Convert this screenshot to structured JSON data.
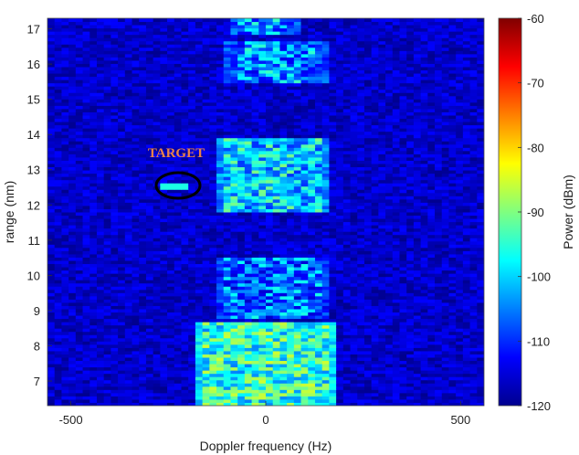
{
  "chart_data": {
    "type": "heatmap",
    "title": "",
    "xlabel": "Doppler frequency (Hz)",
    "ylabel": "range (nm)",
    "xlim": [
      -560,
      560
    ],
    "ylim": [
      6.3,
      17.3
    ],
    "x_ticks": [
      -500,
      0,
      500
    ],
    "y_ticks": [
      7,
      8,
      9,
      10,
      11,
      12,
      13,
      14,
      15,
      16,
      17
    ],
    "colorbar": {
      "label": "Power (dBm)",
      "range": [
        -120,
        -60
      ],
      "ticks": [
        -60,
        -70,
        -80,
        -90,
        -100,
        -110,
        -120
      ],
      "colormap": "jet"
    },
    "clutter_regions": [
      {
        "range": [
          16.8,
          17.3
        ],
        "doppler": [
          -70,
          60
        ],
        "level_dbm": -104
      },
      {
        "range": [
          15.5,
          16.7
        ],
        "doppler": [
          -80,
          130
        ],
        "level_dbm": -104
      },
      {
        "range": [
          11.8,
          13.9
        ],
        "doppler": [
          -100,
          140
        ],
        "level_dbm": -100
      },
      {
        "range": [
          8.8,
          10.5
        ],
        "doppler": [
          -100,
          140
        ],
        "level_dbm": -106
      },
      {
        "range": [
          6.3,
          8.7
        ],
        "doppler": [
          -160,
          160
        ],
        "level_dbm": -95
      }
    ],
    "annotations": [
      {
        "text": "TARGET",
        "doppler": -230,
        "range": 12.55,
        "level_dbm": -96
      }
    ],
    "background_level_dbm": -115
  },
  "colors": {
    "target_label": "#e8824a",
    "target_ellipse": "#000000"
  }
}
